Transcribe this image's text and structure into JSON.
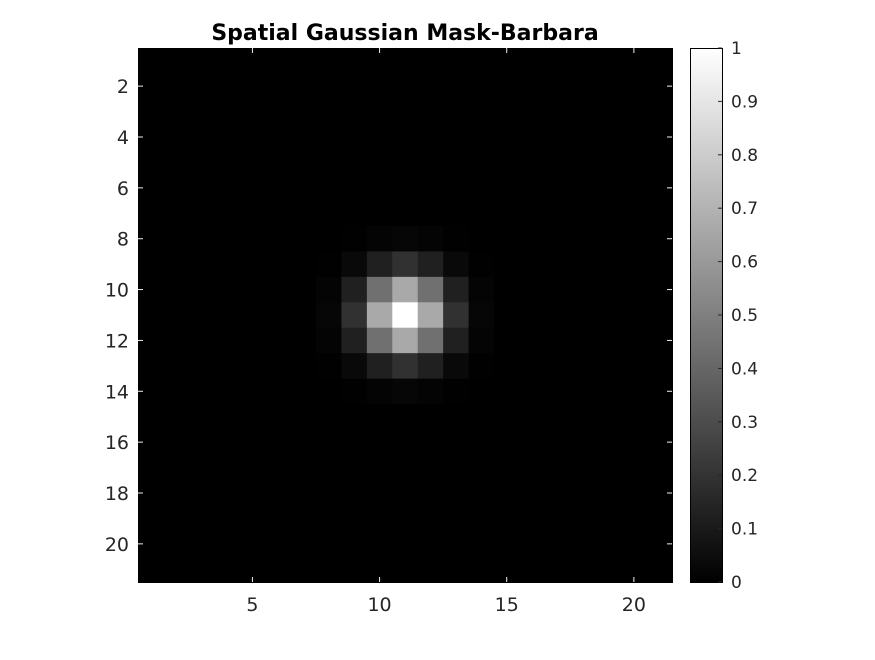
{
  "chart_data": {
    "type": "heatmap",
    "title": "Spatial Gaussian Mask-Barbara",
    "xlabel": "",
    "ylabel": "",
    "grid": false,
    "colormap": "gray",
    "size": [
      21,
      21
    ],
    "center": [
      11,
      11
    ],
    "sigma": 1.1,
    "xlim": [
      0.5,
      21.5
    ],
    "ylim": [
      0.5,
      21.5
    ],
    "y_direction": "reversed",
    "x_ticks": [
      5,
      10,
      15,
      20
    ],
    "y_ticks": [
      2,
      4,
      6,
      8,
      10,
      12,
      14,
      16,
      18,
      20
    ],
    "colorbar": {
      "position": "right",
      "limits": [
        0,
        1
      ],
      "ticks": [
        0,
        0.1,
        0.2,
        0.3,
        0.4,
        0.5,
        0.6,
        0.7,
        0.8,
        0.9,
        1
      ]
    },
    "formula": "exp(-((x-11)^2 + (y-11)^2) / (2*sigma^2))"
  }
}
